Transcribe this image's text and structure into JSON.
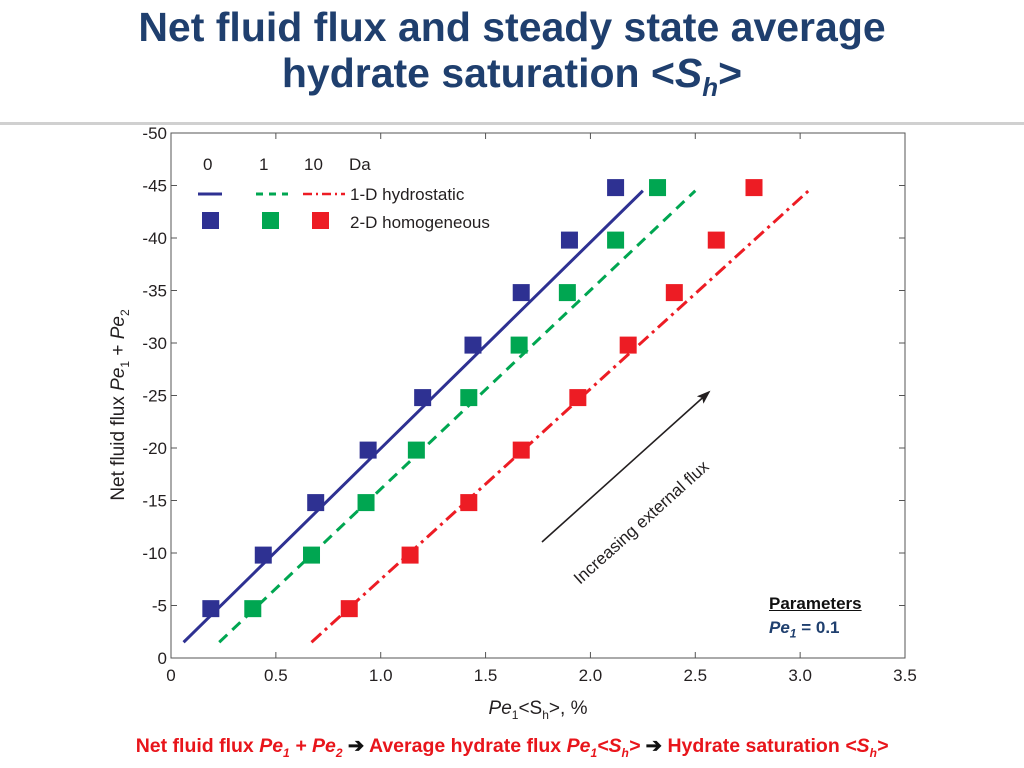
{
  "slide": {
    "title_line1": "Net fluid flux and steady state average",
    "title_line2_prefix": "hydrate saturation <",
    "title_symbol": "S",
    "title_symbol_sub": "h",
    "title_line2_suffix": ">"
  },
  "footer": {
    "part1": "Net fluid flux ",
    "sym1": "Pe",
    "sub1": "1",
    "plus": " + ",
    "sym2": "Pe",
    "sub2": "2",
    "arrow1": " ➔ ",
    "part2": "Average hydrate flux ",
    "sym3": "Pe",
    "sub3": "1",
    "sym3b": "<S",
    "sub3b": "h",
    "sym3c": ">",
    "arrow2": " ➔ ",
    "part3": "Hydrate saturation ",
    "sym4": "<S",
    "sub4": "h",
    "sym4c": ">"
  },
  "parameters": {
    "heading": "Parameters",
    "sym": "Pe",
    "sub": "1",
    "value": " = 0.1"
  },
  "colors": {
    "title": "#1f3f6e",
    "footer": "#e8151b",
    "da0": "#2e3192",
    "da1": "#00a651",
    "da10": "#ed1c24",
    "arrow": "#231f20"
  },
  "chart_data": {
    "type": "line+scatter",
    "xlabel_sym": "Pe",
    "xlabel_sub1": "1",
    "xlabel_mid": "<S",
    "xlabel_sub2": "h",
    "xlabel_end": ">, %",
    "ylabel_text": "Net fluid flux ",
    "ylabel_sym1": "Pe",
    "ylabel_sub1": "1",
    "ylabel_plus": " + ",
    "ylabel_sym2": "Pe",
    "ylabel_sub2": "2",
    "xlim": [
      0,
      3.5
    ],
    "ylim": [
      0,
      -50
    ],
    "xticks": [
      "0",
      "0.5",
      "1.0",
      "1.5",
      "2.0",
      "2.5",
      "3.0",
      "3.5"
    ],
    "yticks": [
      "0",
      "-5",
      "-10",
      "-15",
      "-20",
      "-25",
      "-30",
      "-35",
      "-40",
      "-45",
      "-50"
    ],
    "legend": {
      "da_values": [
        "0",
        "1",
        "10"
      ],
      "da_label": "Da",
      "line_label": "1-D hydrostatic",
      "marker_label": "2-D homogeneous",
      "position": "top-left"
    },
    "annotation": "Increasing external flux",
    "lines": [
      {
        "da": "0",
        "style": "solid",
        "color": "#2e3192",
        "x": [
          0.06,
          2.25
        ],
        "y": [
          -1.5,
          -44.5
        ]
      },
      {
        "da": "1",
        "style": "dashed",
        "color": "#00a651",
        "x": [
          0.23,
          2.5
        ],
        "y": [
          -1.5,
          -44.5
        ]
      },
      {
        "da": "10",
        "style": "dashdot",
        "color": "#ed1c24",
        "x": [
          0.67,
          3.04
        ],
        "y": [
          -1.5,
          -44.5
        ]
      }
    ],
    "series": [
      {
        "da": "0",
        "color": "#2e3192",
        "x": [
          0.19,
          0.44,
          0.69,
          0.94,
          1.2,
          1.44,
          1.67,
          1.9,
          2.12
        ],
        "y": [
          -4.7,
          -9.8,
          -14.8,
          -19.8,
          -24.8,
          -29.8,
          -34.8,
          -39.8,
          -44.8
        ]
      },
      {
        "da": "1",
        "color": "#00a651",
        "x": [
          0.39,
          0.67,
          0.93,
          1.17,
          1.42,
          1.66,
          1.89,
          2.12,
          2.32
        ],
        "y": [
          -4.7,
          -9.8,
          -14.8,
          -19.8,
          -24.8,
          -29.8,
          -34.8,
          -39.8,
          -44.8
        ]
      },
      {
        "da": "10",
        "color": "#ed1c24",
        "x": [
          0.85,
          1.14,
          1.42,
          1.67,
          1.94,
          2.18,
          2.4,
          2.6,
          2.78
        ],
        "y": [
          -4.7,
          -9.8,
          -14.8,
          -19.8,
          -24.8,
          -29.8,
          -34.8,
          -39.8,
          -44.8
        ]
      }
    ]
  }
}
